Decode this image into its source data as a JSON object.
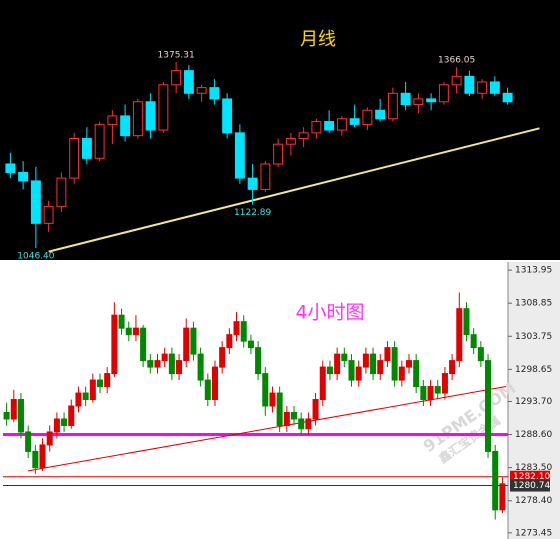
{
  "chart_data": [
    {
      "type": "candlestick",
      "title": "月线",
      "background": "#000000",
      "up_color": "#ff3030",
      "down_color": "#00e5ff",
      "open": [
        1195,
        1180,
        1165,
        1090,
        1120,
        1170,
        1240,
        1205,
        1265,
        1280,
        1245,
        1305,
        1255,
        1335,
        1360,
        1320,
        1330,
        1310,
        1250,
        1170,
        1150,
        1195,
        1230,
        1240,
        1250,
        1270,
        1255,
        1275,
        1265,
        1290,
        1275,
        1320,
        1300,
        1310,
        1305,
        1335,
        1350,
        1320,
        1340,
        1320
      ],
      "high": [
        1215,
        1200,
        1190,
        1130,
        1180,
        1250,
        1260,
        1270,
        1290,
        1300,
        1310,
        1320,
        1340,
        1375.31,
        1370,
        1335,
        1345,
        1320,
        1265,
        1195,
        1200,
        1240,
        1250,
        1260,
        1275,
        1290,
        1280,
        1300,
        1295,
        1310,
        1330,
        1340,
        1320,
        1320,
        1340,
        1366.05,
        1360,
        1345,
        1350,
        1330
      ],
      "low": [
        1170,
        1150,
        1046.4,
        1075,
        1110,
        1160,
        1195,
        1200,
        1230,
        1235,
        1240,
        1240,
        1250,
        1320,
        1310,
        1305,
        1300,
        1240,
        1160,
        1122.89,
        1145,
        1190,
        1210,
        1225,
        1240,
        1250,
        1245,
        1260,
        1255,
        1270,
        1270,
        1290,
        1285,
        1290,
        1300,
        1320,
        1315,
        1310,
        1315,
        1300
      ],
      "close": [
        1180,
        1165,
        1090,
        1120,
        1170,
        1240,
        1205,
        1265,
        1280,
        1245,
        1305,
        1255,
        1335,
        1360,
        1320,
        1330,
        1310,
        1250,
        1170,
        1150,
        1195,
        1230,
        1240,
        1250,
        1270,
        1255,
        1275,
        1265,
        1290,
        1275,
        1320,
        1300,
        1310,
        1305,
        1335,
        1350,
        1320,
        1340,
        1320,
        1305
      ],
      "annotations": [
        {
          "value": 1375.31,
          "label": "1375.31",
          "index": 13,
          "color": "#e8d0d0"
        },
        {
          "value": 1366.05,
          "label": "1366.05",
          "index": 35,
          "color": "#e8d0d0"
        },
        {
          "value": 1122.89,
          "label": "1122.89",
          "index": 19,
          "color": "#40e0e0"
        },
        {
          "value": 1046.4,
          "label": "1046.40",
          "index": 2,
          "color": "#40e0e0"
        }
      ],
      "trendline": {
        "x": [
          3,
          41.5
        ],
        "y": [
          1040,
          1258
        ],
        "color": "#f0e68c"
      }
    },
    {
      "type": "candlestick",
      "title": "4小时图",
      "background": "#ffffff",
      "up_color": "#e00000",
      "down_color": "#008800",
      "ylim": [
        1272.5,
        1315.2
      ],
      "yticks": [
        1313.95,
        1308.85,
        1303.75,
        1298.65,
        {
          "value": 1293.7,
          "label": "1293.70"
        },
        {
          "value": 1288.6,
          "label": "1288.60"
        },
        {
          "value": 1283.5,
          "label": "1283.50"
        },
        {
          "value": 1278.4,
          "label": "1278.40"
        },
        1273.45
      ],
      "open": [
        1292,
        1291,
        1294,
        1289,
        1286,
        1283.5,
        1287,
        1289,
        1291,
        1290,
        1293,
        1295,
        1294,
        1297,
        1296,
        1298,
        1307,
        1305,
        1304,
        1305,
        1300,
        1299,
        1300,
        1301,
        1298,
        1300,
        1305,
        1301,
        1297,
        1294,
        1299,
        1302,
        1304,
        1306,
        1303,
        1302,
        1298,
        1293,
        1295,
        1290,
        1292,
        1291,
        1289.5,
        1291,
        1294,
        1299,
        1298,
        1301,
        1300,
        1297,
        1299,
        1301,
        1298,
        1300,
        1302,
        1297,
        1299,
        1300,
        1296,
        1294,
        1296,
        1295,
        1298,
        1300,
        1308,
        1304,
        1302,
        1300,
        1286,
        1277
      ],
      "high": [
        1293.5,
        1295.5,
        1295,
        1290,
        1287,
        1288,
        1290,
        1292,
        1292,
        1294,
        1296,
        1296,
        1298,
        1298,
        1299,
        1309,
        1308,
        1306,
        1307,
        1305.5,
        1301,
        1301,
        1302,
        1302,
        1301,
        1306.5,
        1306,
        1302,
        1298,
        1300,
        1303,
        1305,
        1307.5,
        1307,
        1304,
        1303,
        1299,
        1296,
        1296,
        1293,
        1293,
        1292,
        1292,
        1295,
        1300,
        1300,
        1302,
        1302,
        1301,
        1300,
        1302,
        1302,
        1301,
        1303,
        1303,
        1300,
        1301,
        1301,
        1297,
        1297,
        1297,
        1299,
        1301,
        1310.5,
        1309,
        1305,
        1303,
        1301,
        1287,
        1282
      ],
      "low": [
        1290,
        1290.5,
        1288,
        1285,
        1282.5,
        1283,
        1286,
        1288,
        1289,
        1289.5,
        1292,
        1293,
        1293.5,
        1295,
        1295,
        1297.5,
        1304,
        1303,
        1303,
        1299,
        1298,
        1298,
        1299,
        1297,
        1297,
        1299,
        1300,
        1296,
        1293,
        1293,
        1298,
        1301,
        1303,
        1302,
        1301,
        1297,
        1291.5,
        1292,
        1289,
        1289,
        1290,
        1288.5,
        1288.5,
        1290,
        1293,
        1297,
        1297,
        1299,
        1296,
        1296,
        1298,
        1297,
        1297,
        1299,
        1296,
        1296,
        1298,
        1295,
        1293,
        1293,
        1294,
        1294,
        1297,
        1299,
        1303,
        1301,
        1299,
        1285,
        1275.5,
        1276.5
      ],
      "close": [
        1291,
        1294,
        1289,
        1286,
        1283.5,
        1287,
        1289,
        1291,
        1290,
        1293,
        1295,
        1294,
        1297,
        1296,
        1298,
        1307,
        1305,
        1304,
        1305,
        1300,
        1299,
        1300,
        1301,
        1298,
        1300,
        1305,
        1301,
        1297,
        1294,
        1299,
        1302,
        1304,
        1306,
        1303,
        1302,
        1298,
        1293,
        1295,
        1290,
        1292,
        1291,
        1289.5,
        1291,
        1294,
        1299,
        1298,
        1301,
        1300,
        1297,
        1299,
        1301,
        1298,
        1300,
        1302,
        1297,
        1299,
        1300,
        1296,
        1294,
        1296,
        1295,
        1298,
        1300,
        1308,
        1304,
        1302,
        1300,
        1286,
        1277,
        1281
      ],
      "hlines": [
        {
          "value": 1288.6,
          "color": "#ff00ff"
        },
        {
          "value": 1282.1,
          "label": "1282.10",
          "color": "#e00000"
        },
        {
          "value": 1280.74,
          "label": "1280.74",
          "color": "#333333"
        }
      ],
      "trendline": {
        "x": [
          3,
          69.5
        ],
        "y": [
          1283,
          1296
        ],
        "color": "#e00000"
      },
      "watermark": [
        "91PME.COM",
        "鑫汇宝贵金属"
      ]
    }
  ]
}
